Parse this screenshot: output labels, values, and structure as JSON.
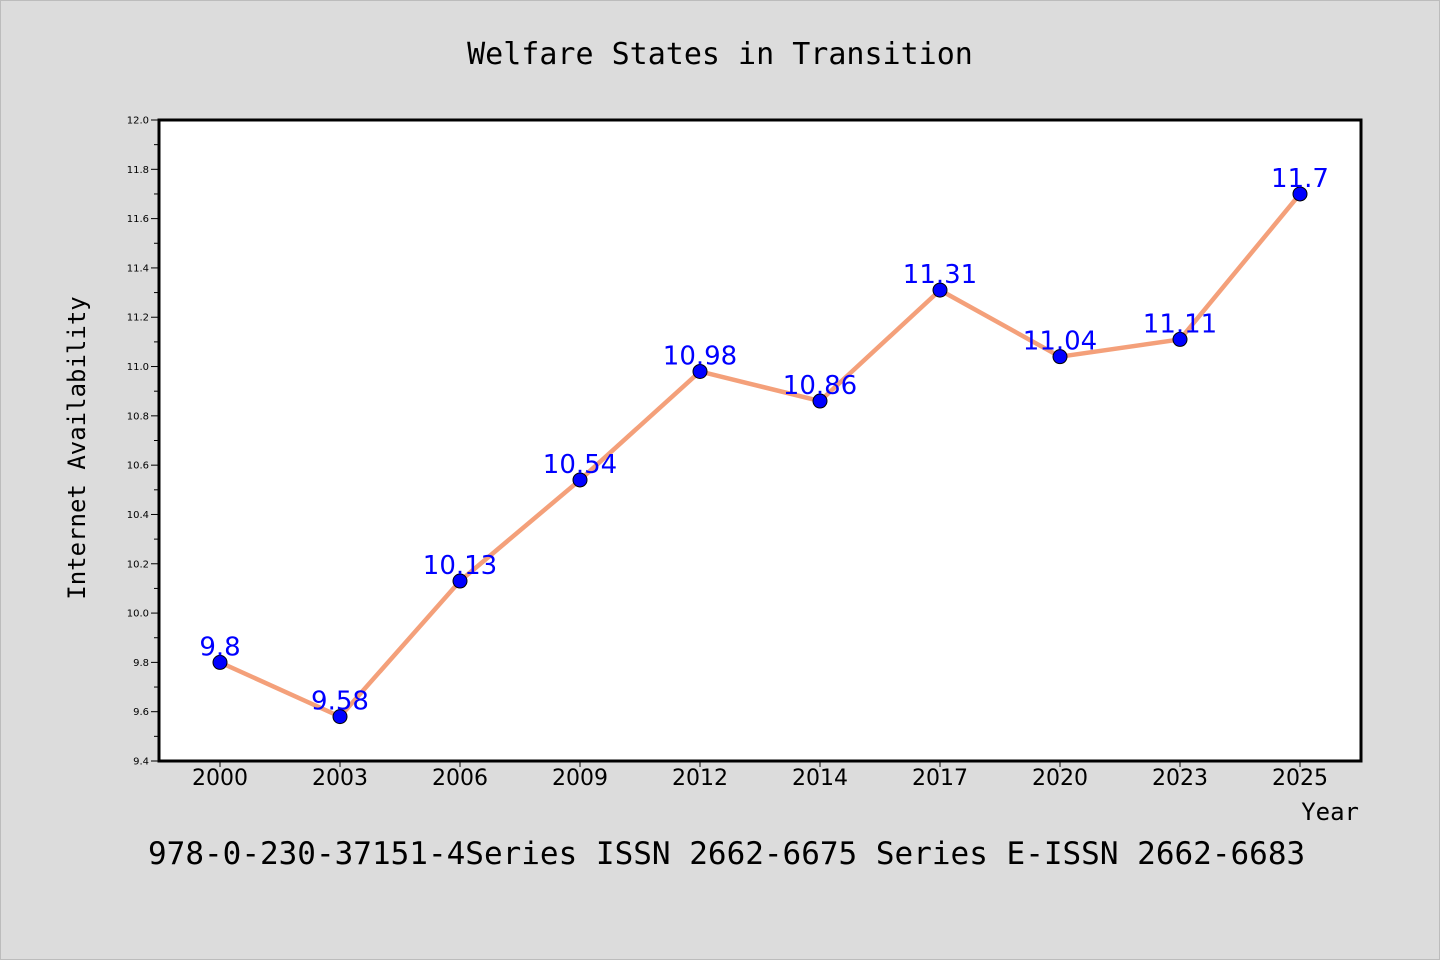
{
  "chart_data": {
    "type": "line",
    "title": "Welfare States in Transition",
    "xlabel": "Year",
    "ylabel": "Internet Availability",
    "categories": [
      "2000",
      "2003",
      "2006",
      "2009",
      "2012",
      "2014",
      "2017",
      "2020",
      "2023",
      "2025"
    ],
    "series": [
      {
        "values": [
          9.8,
          9.58,
          10.13,
          10.54,
          10.98,
          10.86,
          11.31,
          11.04,
          11.11,
          11.7
        ],
        "data_labels": [
          "9.8",
          "9.58",
          "10.13",
          "10.54",
          "10.98",
          "10.86",
          "11.31",
          "11.04",
          "11.11",
          "11.7"
        ]
      }
    ],
    "ylim": [
      9.4,
      12.0
    ],
    "yticks": [
      "9.4",
      "9.6",
      "9.8",
      "10.0",
      "10.2",
      "10.4",
      "10.6",
      "10.8",
      "11.0",
      "11.2",
      "11.4",
      "11.6",
      "11.8",
      "12.0"
    ],
    "grid": false,
    "colors": {
      "line": "#f4a07a",
      "marker": "#0000ff",
      "label": "#0000ff",
      "background": "#dcdcdc",
      "plot_background": "#ffffff"
    },
    "footer": "978-0-230-37151-4Series ISSN 2662-6675 Series E-ISSN 2662-6683"
  }
}
